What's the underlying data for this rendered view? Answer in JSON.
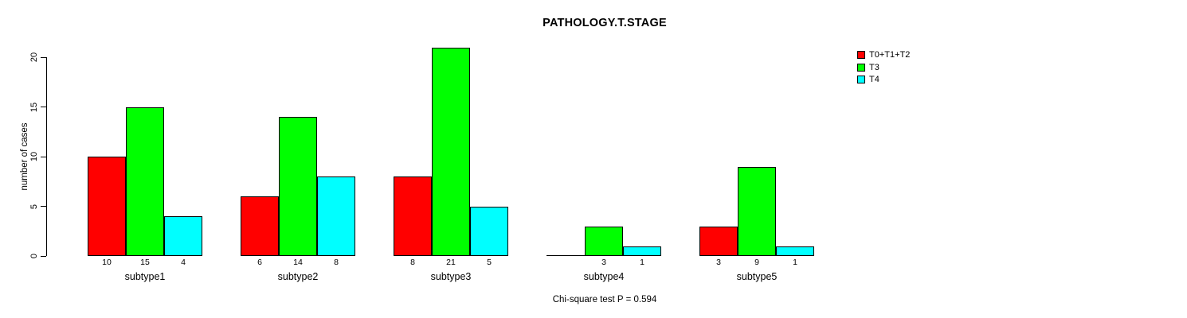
{
  "chart_data": {
    "type": "bar",
    "grouped": true,
    "title": "PATHOLOGY.T.STAGE",
    "ylabel": "number of cases",
    "xlabel": "",
    "categories": [
      "subtype1",
      "subtype2",
      "subtype3",
      "subtype4",
      "subtype5"
    ],
    "series": [
      {
        "name": "T0+T1+T2",
        "color": "#FF0000",
        "values": [
          10,
          6,
          8,
          0,
          3
        ]
      },
      {
        "name": "T3",
        "color": "#00FF00",
        "values": [
          15,
          14,
          21,
          3,
          9
        ]
      },
      {
        "name": "T4",
        "color": "#00FFFF",
        "values": [
          4,
          8,
          5,
          1,
          1
        ]
      }
    ],
    "bar_value_labels_shown": true,
    "ylim": [
      0,
      20
    ],
    "yticks": [
      0,
      5,
      10,
      15,
      20
    ],
    "grid": false,
    "legend_position": "top-right",
    "annotation": "Chi-square test P = 0.594"
  }
}
